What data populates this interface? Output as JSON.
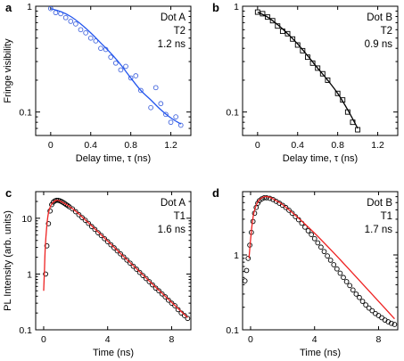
{
  "chart_data": [
    {
      "type": "scatter",
      "panel": "a",
      "annotation": [
        "Dot A",
        "T2",
        "1.2 ns"
      ],
      "xlabel": "Delay time, τ (ns)",
      "ylabel": "Fringe visibility",
      "xlim": [
        -0.15,
        1.4
      ],
      "ylim": [
        0.06,
        1.0
      ],
      "yscale": "log",
      "xticks": [
        {
          "v": 0,
          "label": "0"
        },
        {
          "v": 0.4,
          "label": "0.4"
        },
        {
          "v": 0.8,
          "label": "0.8"
        },
        {
          "v": 1.2,
          "label": "1.2"
        }
      ],
      "yticks": [
        {
          "v": 1,
          "label": "1"
        },
        {
          "v": 0.1,
          "label": "0.1"
        }
      ],
      "minor_y": true,
      "marker": "circle",
      "marker_color": "#4466dd",
      "fit_color": "#2255ee",
      "points": {
        "x": [
          0.0,
          0.05,
          0.1,
          0.15,
          0.2,
          0.25,
          0.3,
          0.35,
          0.4,
          0.45,
          0.5,
          0.55,
          0.6,
          0.65,
          0.7,
          0.75,
          0.8,
          0.85,
          0.9,
          1.0,
          1.05,
          1.1,
          1.15,
          1.2,
          1.25,
          1.3
        ],
        "y": [
          0.95,
          0.87,
          0.85,
          0.78,
          0.72,
          0.68,
          0.6,
          0.56,
          0.5,
          0.47,
          0.4,
          0.39,
          0.33,
          0.29,
          0.25,
          0.27,
          0.21,
          0.22,
          0.16,
          0.11,
          0.17,
          0.12,
          0.095,
          0.08,
          0.09,
          0.075
        ]
      },
      "fit": {
        "x": [
          0.0,
          0.1,
          0.2,
          0.3,
          0.4,
          0.5,
          0.6,
          0.7,
          0.8,
          0.9,
          1.0,
          1.1,
          1.2,
          1.3
        ],
        "y": [
          0.95,
          0.89,
          0.8,
          0.68,
          0.56,
          0.45,
          0.36,
          0.28,
          0.21,
          0.16,
          0.13,
          0.105,
          0.088,
          0.077
        ]
      }
    },
    {
      "type": "scatter",
      "panel": "b",
      "annotation": [
        "Dot B",
        "T2",
        "0.9 ns"
      ],
      "xlabel": "Delay time, τ (ns)",
      "ylabel": "",
      "xlim": [
        -0.15,
        1.4
      ],
      "ylim": [
        0.06,
        1.0
      ],
      "yscale": "log",
      "xticks": [
        {
          "v": 0,
          "label": "0"
        },
        {
          "v": 0.4,
          "label": "0.4"
        },
        {
          "v": 0.8,
          "label": "0.8"
        },
        {
          "v": 1.2,
          "label": "1.2"
        }
      ],
      "yticks": [
        {
          "v": 1,
          "label": "1"
        },
        {
          "v": 0.1,
          "label": "0.1"
        }
      ],
      "minor_y": true,
      "marker": "square",
      "marker_color": "#000000",
      "fit_color": "#000000",
      "points": {
        "x": [
          0.0,
          0.05,
          0.1,
          0.15,
          0.2,
          0.25,
          0.3,
          0.35,
          0.4,
          0.45,
          0.5,
          0.55,
          0.6,
          0.65,
          0.7,
          0.8,
          0.85,
          0.9,
          0.95,
          1.0
        ],
        "y": [
          0.88,
          0.85,
          0.79,
          0.73,
          0.65,
          0.58,
          0.55,
          0.49,
          0.43,
          0.38,
          0.33,
          0.29,
          0.26,
          0.23,
          0.2,
          0.15,
          0.13,
          0.1,
          0.08,
          0.068
        ]
      },
      "fit": {
        "x": [
          0.0,
          0.1,
          0.2,
          0.3,
          0.4,
          0.5,
          0.6,
          0.7,
          0.8,
          0.9,
          1.0
        ],
        "y": [
          0.88,
          0.79,
          0.67,
          0.55,
          0.44,
          0.34,
          0.26,
          0.2,
          0.15,
          0.105,
          0.07
        ]
      }
    },
    {
      "type": "scatter",
      "panel": "c",
      "annotation": [
        "Dot A",
        "T1",
        "1.6 ns"
      ],
      "xlabel": "Time (ns)",
      "ylabel": "PL Intensity (arb. units)",
      "xlim": [
        -0.5,
        9.2
      ],
      "ylim": [
        0.1,
        30
      ],
      "yscale": "log",
      "xticks": [
        {
          "v": 0,
          "label": "0"
        },
        {
          "v": 4,
          "label": "4"
        },
        {
          "v": 8,
          "label": "8"
        }
      ],
      "yticks": [
        {
          "v": 10,
          "label": "10"
        },
        {
          "v": 1,
          "label": "1"
        },
        {
          "v": 0.1,
          "label": "0.1"
        }
      ],
      "minor_y": true,
      "marker": "circle",
      "marker_color": "#000000",
      "fit_color": "#ee2222",
      "points": {
        "x": [
          0.12,
          0.2,
          0.3,
          0.4,
          0.5,
          0.6,
          0.7,
          0.8,
          0.9,
          1.0,
          1.1,
          1.2,
          1.3,
          1.4,
          1.5,
          1.6,
          1.8,
          2.0,
          2.2,
          2.4,
          2.6,
          2.8,
          3.0,
          3.2,
          3.4,
          3.6,
          3.8,
          4.0,
          4.2,
          4.4,
          4.6,
          4.8,
          5.0,
          5.2,
          5.4,
          5.6,
          5.8,
          6.0,
          6.2,
          6.4,
          6.6,
          6.8,
          7.0,
          7.2,
          7.4,
          7.6,
          7.8,
          8.0,
          8.2,
          8.4,
          8.6,
          8.8,
          9.0
        ],
        "y": [
          1.0,
          3.2,
          8.0,
          13.5,
          17.5,
          19.5,
          20.5,
          21.0,
          21.0,
          20.6,
          20.0,
          19.3,
          18.5,
          17.7,
          16.9,
          16.1,
          14.7,
          13.1,
          11.6,
          10.3,
          9.2,
          8.1,
          7.1,
          6.3,
          5.5,
          4.9,
          4.3,
          3.8,
          3.35,
          2.95,
          2.6,
          2.3,
          2.02,
          1.78,
          1.57,
          1.38,
          1.22,
          1.07,
          0.94,
          0.83,
          0.73,
          0.64,
          0.56,
          0.5,
          0.44,
          0.39,
          0.34,
          0.3,
          0.27,
          0.23,
          0.2,
          0.18,
          0.16
        ]
      },
      "fit": {
        "x": [
          0.0,
          0.05,
          0.1,
          0.2,
          0.3,
          0.45,
          0.6,
          0.8,
          1.0,
          1.5,
          2.0,
          3.0,
          4.0,
          5.0,
          6.0,
          7.0,
          8.0,
          9.0
        ],
        "y": [
          0.5,
          1.2,
          3.0,
          7.5,
          12.5,
          17.0,
          19.5,
          21.0,
          20.5,
          17.0,
          13.4,
          7.3,
          3.9,
          2.06,
          1.1,
          0.58,
          0.31,
          0.165
        ]
      }
    },
    {
      "type": "scatter",
      "panel": "d",
      "annotation": [
        "Dot B",
        "T1",
        "1.7 ns"
      ],
      "xlabel": "Time (ns)",
      "ylabel": "",
      "xlim": [
        -0.5,
        9.2
      ],
      "ylim": [
        0.1,
        7.0
      ],
      "yscale": "log",
      "xticks": [
        {
          "v": 0,
          "label": "0"
        },
        {
          "v": 4,
          "label": "4"
        },
        {
          "v": 8,
          "label": "8"
        }
      ],
      "yticks": [
        {
          "v": 1,
          "label": "1"
        },
        {
          "v": 0.1,
          "label": "0.1"
        }
      ],
      "minor_y": true,
      "marker": "circle",
      "marker_color": "#000000",
      "fit_color": "#ee2222",
      "points": {
        "x": [
          -0.35,
          -0.25,
          -0.15,
          -0.05,
          0.05,
          0.15,
          0.25,
          0.35,
          0.45,
          0.55,
          0.7,
          0.85,
          1.0,
          1.2,
          1.4,
          1.6,
          1.8,
          2.0,
          2.2,
          2.4,
          2.6,
          2.8,
          3.0,
          3.2,
          3.4,
          3.6,
          3.8,
          4.0,
          4.2,
          4.4,
          4.6,
          4.8,
          5.0,
          5.2,
          5.4,
          5.6,
          5.8,
          6.0,
          6.2,
          6.4,
          6.6,
          6.8,
          7.0,
          7.2,
          7.4,
          7.6,
          7.8,
          8.0,
          8.2,
          8.4,
          8.6,
          8.8,
          9.0
        ],
        "y": [
          0.45,
          0.62,
          0.9,
          1.35,
          2.0,
          2.8,
          3.6,
          4.3,
          4.9,
          5.3,
          5.6,
          5.8,
          5.8,
          5.7,
          5.5,
          5.2,
          4.9,
          4.6,
          4.3,
          3.95,
          3.6,
          3.25,
          2.95,
          2.65,
          2.35,
          2.1,
          1.87,
          1.65,
          1.45,
          1.27,
          1.11,
          0.97,
          0.85,
          0.74,
          0.65,
          0.57,
          0.5,
          0.44,
          0.39,
          0.34,
          0.3,
          0.27,
          0.24,
          0.215,
          0.195,
          0.18,
          0.165,
          0.155,
          0.145,
          0.135,
          0.128,
          0.122,
          0.118
        ]
      },
      "fit": {
        "x": [
          -0.1,
          0.0,
          0.1,
          0.2,
          0.35,
          0.5,
          0.7,
          0.9,
          1.2,
          1.6,
          2.0,
          3.0,
          4.0,
          5.0,
          6.0,
          7.0,
          8.0,
          9.0
        ],
        "y": [
          0.9,
          1.6,
          2.6,
          3.6,
          4.6,
          5.3,
          5.8,
          6.0,
          5.9,
          5.3,
          4.7,
          3.1,
          1.95,
          1.18,
          0.7,
          0.41,
          0.24,
          0.14
        ]
      }
    }
  ]
}
